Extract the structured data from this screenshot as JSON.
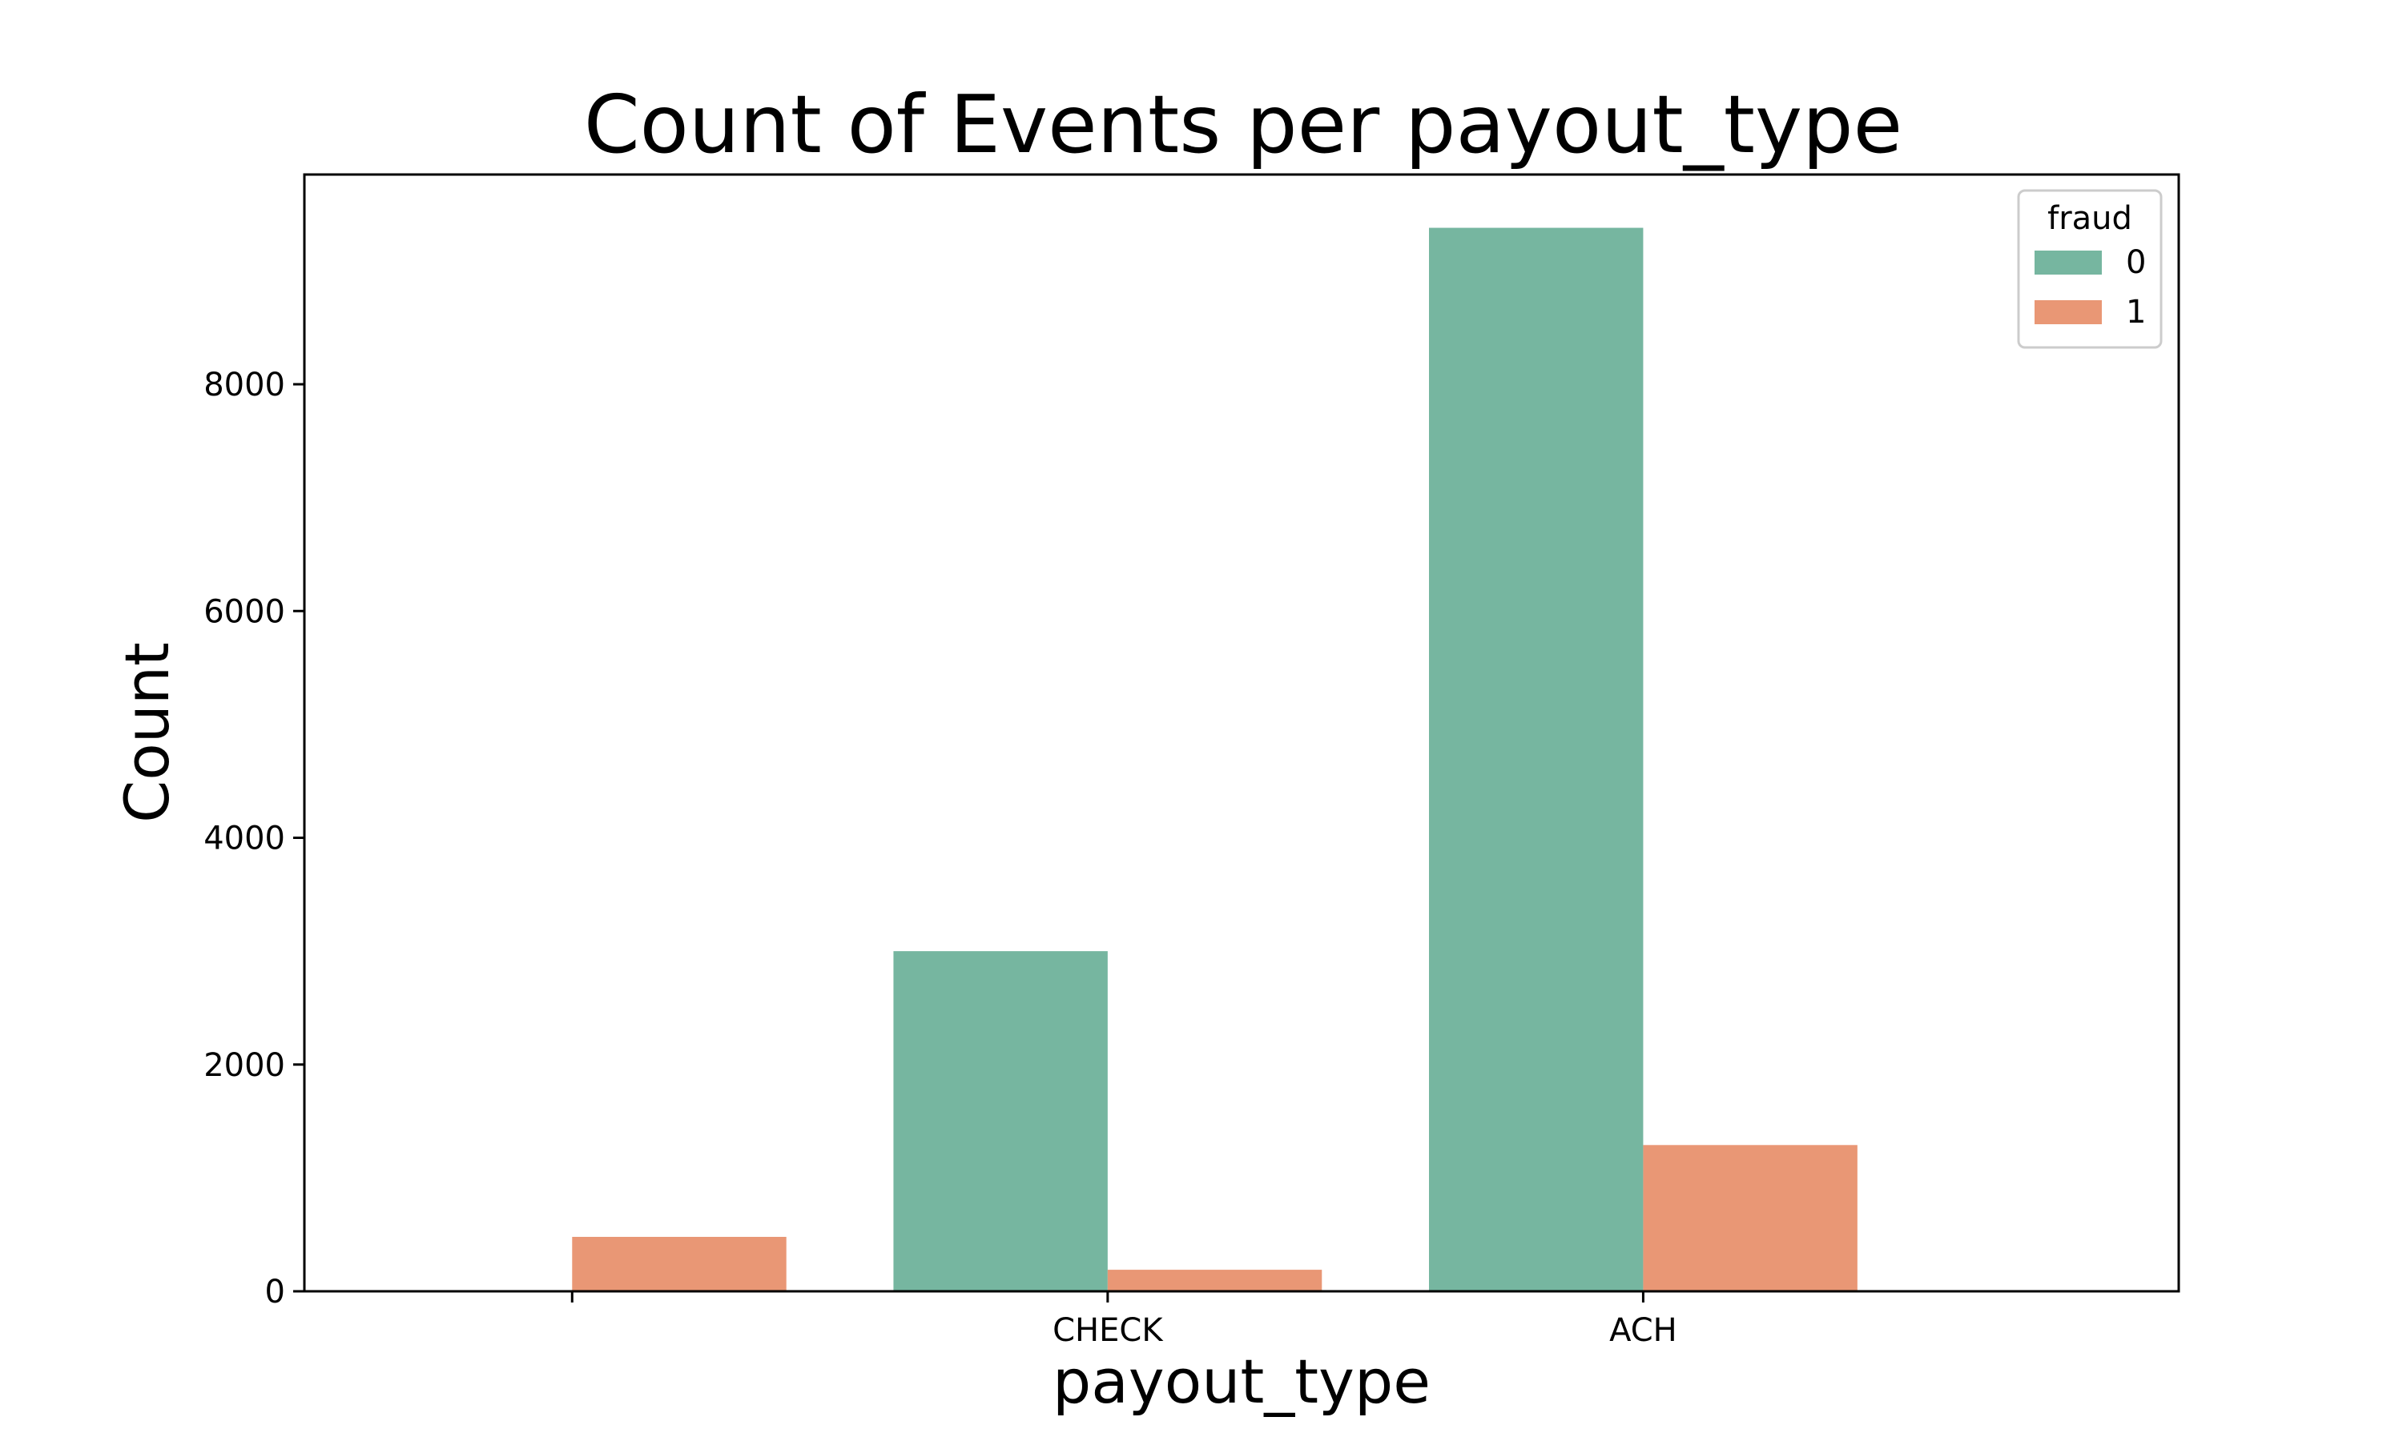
{
  "chart_data": {
    "type": "bar",
    "title": "Count of Events per payout_type",
    "xlabel": "payout_type",
    "ylabel": "Count",
    "categories": [
      "",
      "CHECK",
      "ACH"
    ],
    "series": [
      {
        "name": "0",
        "color": "#76b6a0",
        "values": [
          0,
          3000,
          9380
        ]
      },
      {
        "name": "1",
        "color": "#e99775",
        "values": [
          480,
          190,
          1290
        ]
      }
    ],
    "ylim": [
      0,
      9850
    ],
    "yticks": [
      0,
      2000,
      4000,
      6000,
      8000
    ],
    "legend": {
      "title": "fraud",
      "placement": "top-right"
    },
    "grid": false
  }
}
